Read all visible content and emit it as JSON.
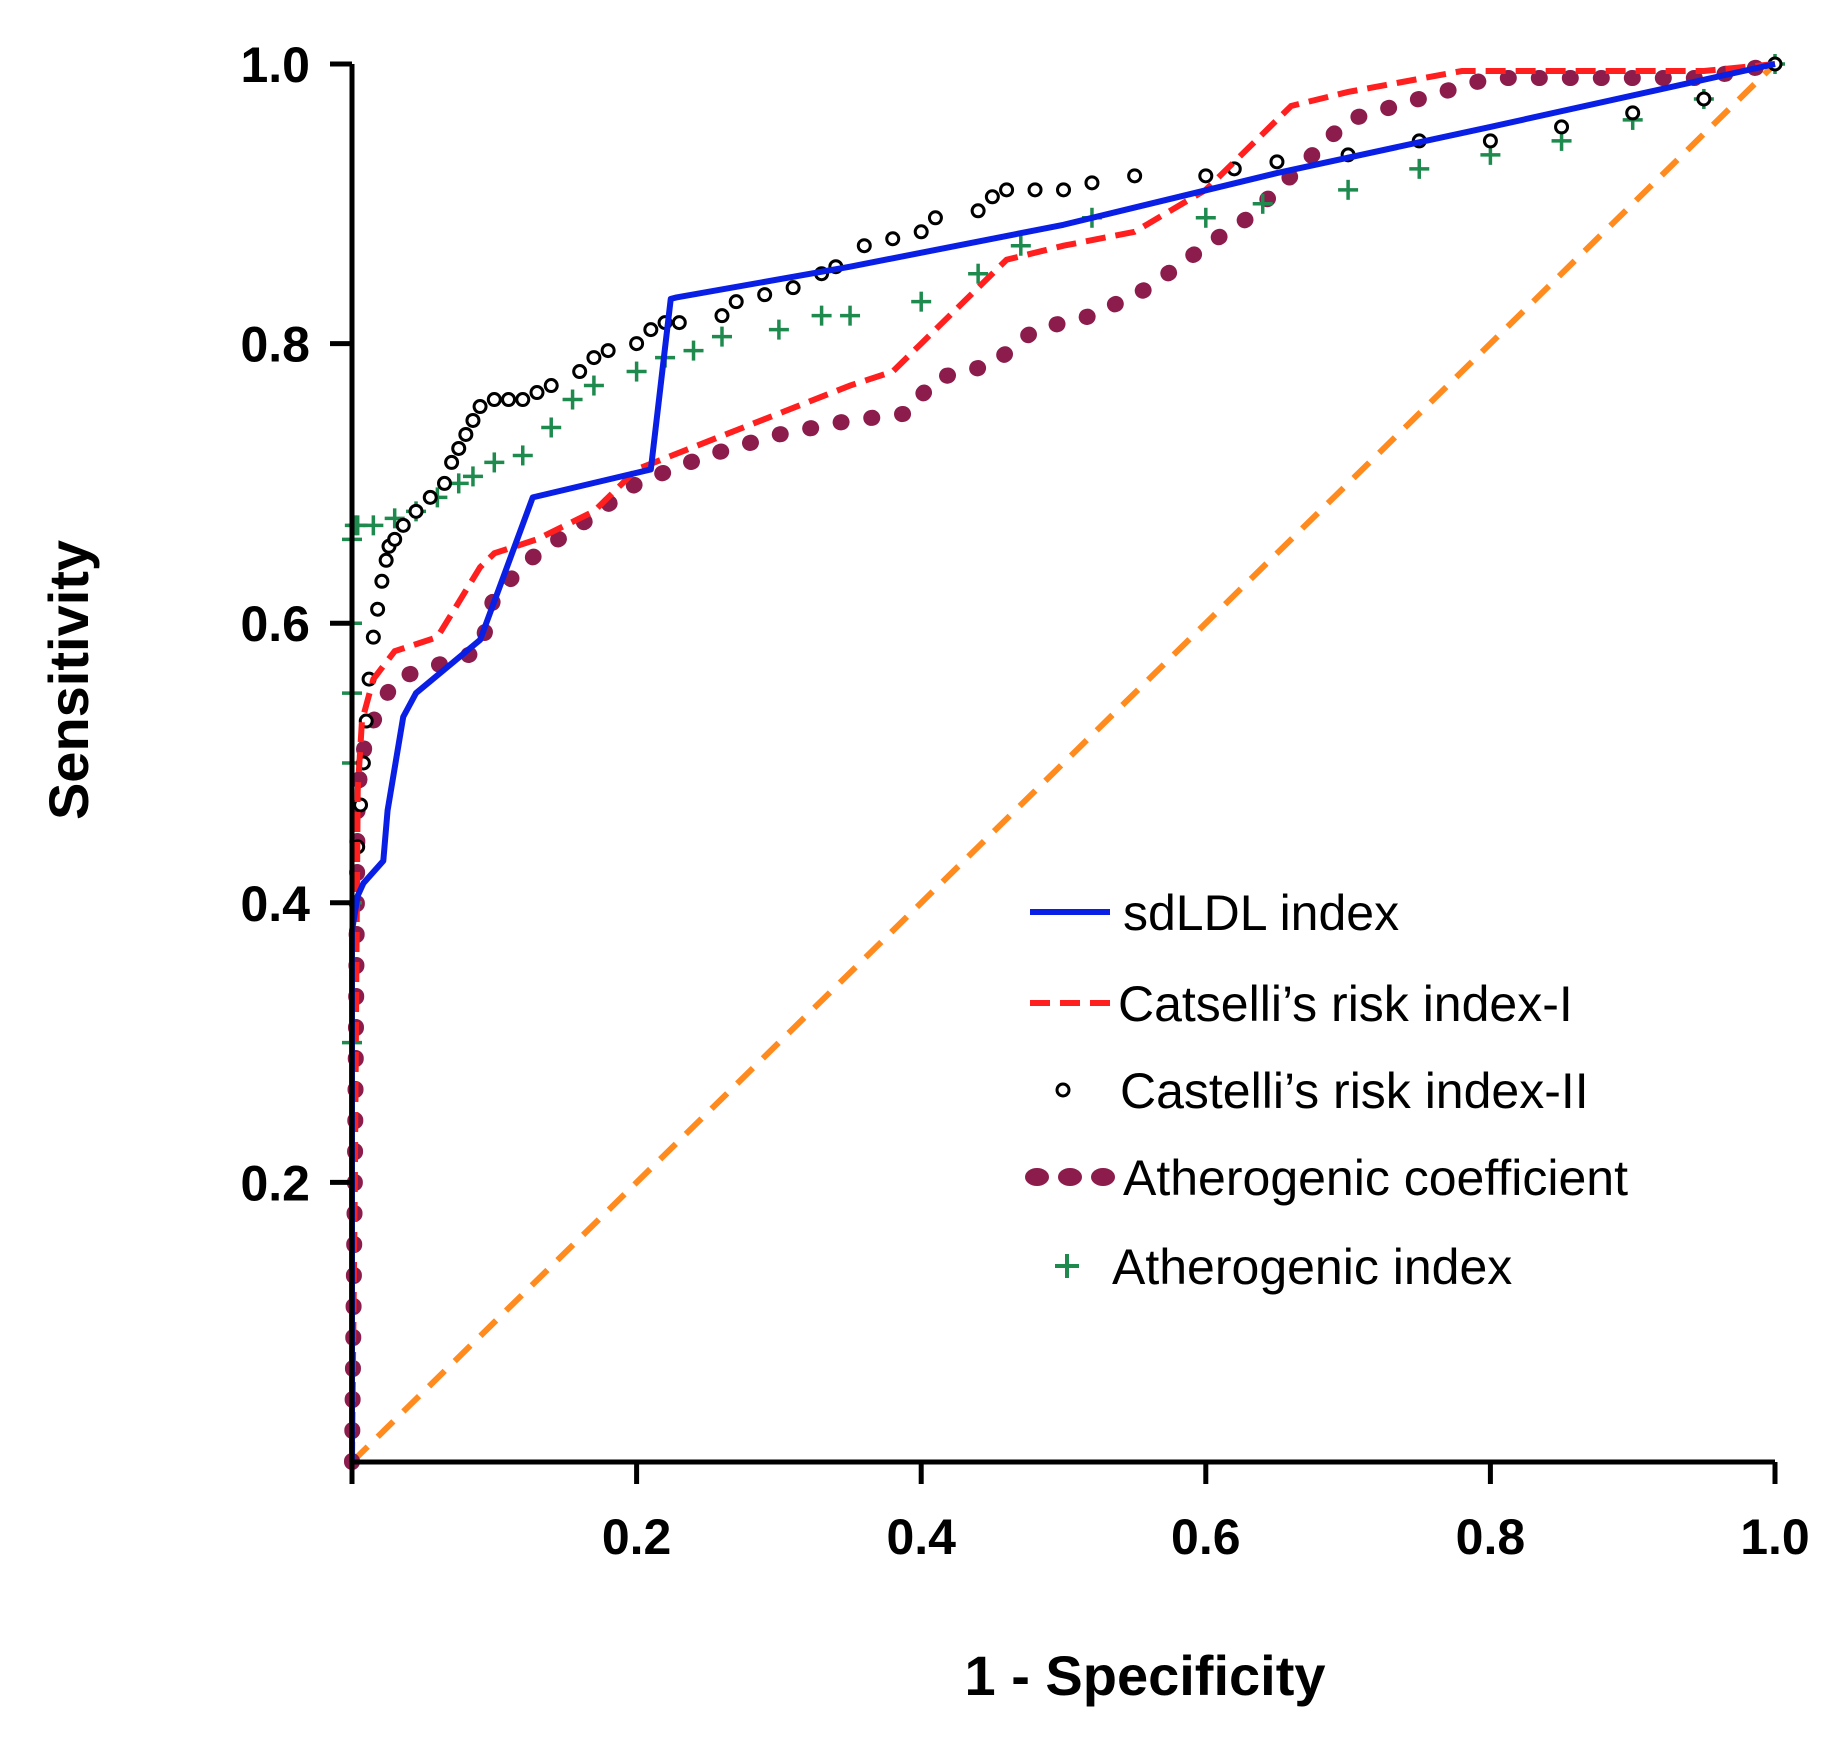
{
  "chart_data": {
    "type": "line",
    "title": "",
    "xlabel": "1 - Specificity",
    "ylabel": "Sensitivity",
    "xlim": [
      0,
      1
    ],
    "ylim": [
      0,
      1
    ],
    "xticks": [
      0.2,
      0.4,
      0.6,
      0.8,
      1.0
    ],
    "xtick_labels": [
      "0.2",
      "0.4",
      "0.6",
      "0.8",
      "1.0"
    ],
    "yticks": [
      0.2,
      0.4,
      0.6,
      0.8,
      1.0
    ],
    "ytick_labels": [
      "0.2",
      "0.4",
      "0.6",
      "0.8",
      "1.0"
    ],
    "legend_position": "lower-right",
    "series": [
      {
        "name": "sdLDL index",
        "style": "solid-line",
        "color": "#0a1fe6",
        "x": [
          0,
          0,
          0.004,
          0.008,
          0.022,
          0.025,
          0.036,
          0.045,
          0.09,
          0.127,
          0.21,
          0.224,
          0.228,
          0.35,
          0.5,
          0.65,
          0.8,
          1.0
        ],
        "y": [
          0,
          0.38,
          0.405,
          0.414,
          0.43,
          0.466,
          0.533,
          0.55,
          0.588,
          0.69,
          0.71,
          0.832,
          0.833,
          0.855,
          0.885,
          0.922,
          0.955,
          1.0
        ]
      },
      {
        "name": "Catselli’s risk index-I",
        "style": "dashed-line",
        "color": "#ff1f1f",
        "x": [
          0,
          0.002,
          0.004,
          0.007,
          0.015,
          0.03,
          0.06,
          0.09,
          0.1,
          0.13,
          0.17,
          0.2,
          0.25,
          0.3,
          0.35,
          0.38,
          0.4,
          0.43,
          0.46,
          0.5,
          0.55,
          0.6,
          0.63,
          0.66,
          0.7,
          0.78,
          0.95,
          1.0
        ],
        "y": [
          0,
          0.2,
          0.48,
          0.53,
          0.56,
          0.58,
          0.59,
          0.64,
          0.65,
          0.66,
          0.68,
          0.71,
          0.73,
          0.75,
          0.77,
          0.78,
          0.8,
          0.83,
          0.86,
          0.87,
          0.88,
          0.91,
          0.94,
          0.97,
          0.98,
          0.995,
          0.995,
          1.0
        ]
      },
      {
        "name": "Castelli’s risk index-II",
        "style": "open-circles",
        "color": "#000000",
        "x": [
          0.004,
          0.006,
          0.008,
          0.01,
          0.012,
          0.015,
          0.018,
          0.021,
          0.024,
          0.026,
          0.03,
          0.036,
          0.045,
          0.055,
          0.065,
          0.07,
          0.075,
          0.08,
          0.085,
          0.09,
          0.1,
          0.11,
          0.12,
          0.13,
          0.14,
          0.16,
          0.17,
          0.18,
          0.2,
          0.21,
          0.22,
          0.23,
          0.26,
          0.27,
          0.29,
          0.31,
          0.33,
          0.34,
          0.36,
          0.38,
          0.4,
          0.41,
          0.44,
          0.45,
          0.46,
          0.48,
          0.5,
          0.52,
          0.55,
          0.6,
          0.62,
          0.65,
          0.7,
          0.75,
          0.8,
          0.85,
          0.9,
          0.95,
          1.0
        ],
        "y": [
          0.44,
          0.47,
          0.5,
          0.53,
          0.56,
          0.59,
          0.61,
          0.63,
          0.645,
          0.655,
          0.66,
          0.67,
          0.68,
          0.69,
          0.7,
          0.715,
          0.725,
          0.735,
          0.745,
          0.755,
          0.76,
          0.76,
          0.76,
          0.765,
          0.77,
          0.78,
          0.79,
          0.795,
          0.8,
          0.81,
          0.815,
          0.815,
          0.82,
          0.83,
          0.835,
          0.84,
          0.85,
          0.855,
          0.87,
          0.875,
          0.88,
          0.89,
          0.895,
          0.905,
          0.91,
          0.91,
          0.91,
          0.915,
          0.92,
          0.92,
          0.925,
          0.93,
          0.935,
          0.945,
          0.945,
          0.955,
          0.965,
          0.975,
          1.0
        ]
      },
      {
        "name": "Atherogenic coefficient",
        "style": "dotted-line",
        "color": "#8c1c4c",
        "x": [
          0,
          0.002,
          0.004,
          0.01,
          0.03,
          0.06,
          0.09,
          0.1,
          0.13,
          0.16,
          0.2,
          0.25,
          0.3,
          0.35,
          0.39,
          0.41,
          0.45,
          0.48,
          0.52,
          0.56,
          0.6,
          0.63,
          0.67,
          0.7,
          0.75,
          0.8,
          0.95,
          1.0
        ],
        "y": [
          0,
          0.2,
          0.48,
          0.52,
          0.56,
          0.57,
          0.58,
          0.62,
          0.65,
          0.67,
          0.7,
          0.72,
          0.735,
          0.745,
          0.75,
          0.775,
          0.785,
          0.81,
          0.82,
          0.84,
          0.87,
          0.89,
          0.93,
          0.96,
          0.975,
          0.99,
          0.99,
          1.0
        ]
      },
      {
        "name": "Atherogenic index",
        "style": "plus-markers",
        "color": "#1e8a4e",
        "x": [
          0,
          0,
          0,
          0,
          0,
          0,
          0.002,
          0.004,
          0.015,
          0.03,
          0.045,
          0.06,
          0.075,
          0.085,
          0.1,
          0.12,
          0.14,
          0.155,
          0.17,
          0.2,
          0.22,
          0.24,
          0.26,
          0.3,
          0.33,
          0.35,
          0.4,
          0.44,
          0.47,
          0.52,
          0.6,
          0.64,
          0.7,
          0.75,
          0.8,
          0.85,
          0.9,
          0.95,
          1.0
        ],
        "y": [
          0.3,
          0.4,
          0.5,
          0.55,
          0.6,
          0.66,
          0.67,
          0.67,
          0.67,
          0.675,
          0.68,
          0.69,
          0.7,
          0.705,
          0.715,
          0.72,
          0.74,
          0.76,
          0.77,
          0.78,
          0.79,
          0.795,
          0.805,
          0.81,
          0.82,
          0.82,
          0.83,
          0.85,
          0.87,
          0.89,
          0.89,
          0.9,
          0.91,
          0.925,
          0.935,
          0.945,
          0.96,
          0.975,
          1.0
        ]
      },
      {
        "name": "reference",
        "style": "diagonal-dashed",
        "color": "#ff8a1e",
        "x": [
          0,
          1
        ],
        "y": [
          0,
          1
        ]
      }
    ],
    "legend": [
      "sdLDL index",
      "Catselli’s risk index-I",
      "Castelli’s risk index-II",
      "Atherogenic coefficient",
      "Atherogenic index"
    ]
  }
}
